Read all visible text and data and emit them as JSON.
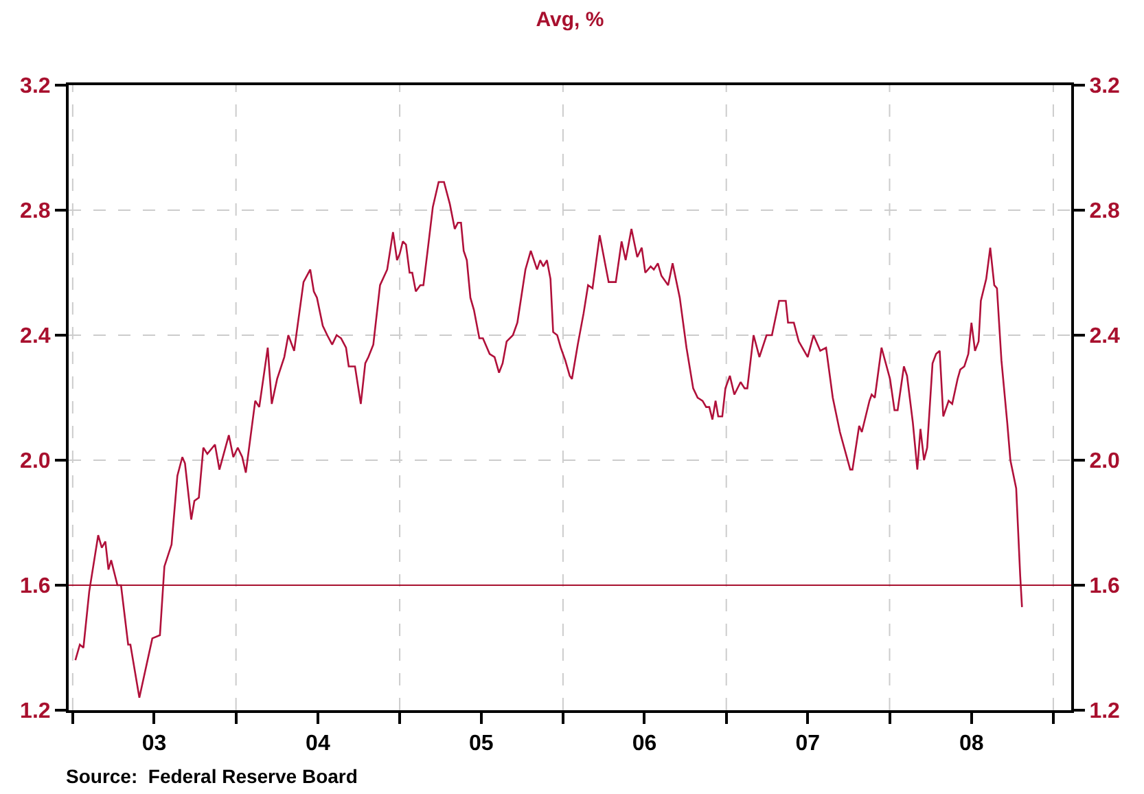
{
  "chart_data": {
    "type": "line",
    "title": "Avg, %",
    "x": [
      "2003-01-07",
      "2003-01-17",
      "2003-01-25",
      "2003-02-07",
      "2003-02-27",
      "2003-03-07",
      "2003-03-15",
      "2003-03-22",
      "2003-03-28",
      "2003-04-11",
      "2003-04-19",
      "2003-05-05",
      "2003-05-10",
      "2003-05-30",
      "2003-06-28",
      "2003-07-15",
      "2003-07-25",
      "2003-08-10",
      "2003-08-23",
      "2003-09-03",
      "2003-09-09",
      "2003-09-23",
      "2003-09-30",
      "2003-10-10",
      "2003-10-20",
      "2003-10-29",
      "2003-11-15",
      "2003-11-25",
      "2003-12-16",
      "2003-12-26",
      "2004-01-05",
      "2004-01-15",
      "2004-01-23",
      "2004-02-13",
      "2004-02-22",
      "2004-03-12",
      "2004-03-21",
      "2004-04-02",
      "2004-04-18",
      "2004-04-27",
      "2004-05-10",
      "2004-05-31",
      "2004-06-15",
      "2004-06-23",
      "2004-06-30",
      "2004-07-13",
      "2004-07-23",
      "2004-08-03",
      "2004-08-13",
      "2004-08-23",
      "2004-09-03",
      "2004-09-09",
      "2004-09-23",
      "2004-10-06",
      "2004-10-16",
      "2004-10-23",
      "2004-11-03",
      "2004-11-18",
      "2004-12-04",
      "2004-12-17",
      "2004-12-26",
      "2005-01-01",
      "2005-01-08",
      "2005-01-15",
      "2005-01-23",
      "2005-01-29",
      "2005-02-06",
      "2005-02-16",
      "2005-02-23",
      "2005-03-06",
      "2005-03-16",
      "2005-03-29",
      "2005-04-10",
      "2005-04-23",
      "2005-05-04",
      "2005-05-11",
      "2005-05-18",
      "2005-05-24",
      "2005-05-31",
      "2005-06-08",
      "2005-06-16",
      "2005-06-28",
      "2005-07-06",
      "2005-07-21",
      "2005-08-01",
      "2005-08-11",
      "2005-08-19",
      "2005-08-28",
      "2005-09-11",
      "2005-09-21",
      "2005-10-09",
      "2005-10-21",
      "2005-11-04",
      "2005-11-11",
      "2005-11-18",
      "2005-11-26",
      "2005-12-04",
      "2005-12-10",
      "2005-12-19",
      "2005-12-27",
      "2006-01-06",
      "2006-01-16",
      "2006-01-21",
      "2006-02-03",
      "2006-02-16",
      "2006-02-26",
      "2006-03-08",
      "2006-03-24",
      "2006-04-13",
      "2006-04-29",
      "2006-05-12",
      "2006-05-21",
      "2006-06-03",
      "2006-06-16",
      "2006-06-26",
      "2006-07-04",
      "2006-07-16",
      "2006-07-23",
      "2006-08-01",
      "2006-08-09",
      "2006-08-24",
      "2006-09-03",
      "2006-09-19",
      "2006-10-04",
      "2006-10-19",
      "2006-10-29",
      "2006-11-09",
      "2006-11-17",
      "2006-11-24",
      "2006-12-01",
      "2006-12-08",
      "2006-12-14",
      "2006-12-23",
      "2006-12-30",
      "2007-01-09",
      "2007-01-19",
      "2007-02-02",
      "2007-02-11",
      "2007-02-17",
      "2007-03-03",
      "2007-03-16",
      "2007-04-01",
      "2007-04-13",
      "2007-04-29",
      "2007-05-07",
      "2007-05-14",
      "2007-05-19",
      "2007-06-01",
      "2007-06-12",
      "2007-07-02",
      "2007-07-15",
      "2007-07-30",
      "2007-08-12",
      "2007-08-27",
      "2007-09-12",
      "2007-10-05",
      "2007-10-10",
      "2007-10-25",
      "2007-10-31",
      "2007-11-17",
      "2007-11-22",
      "2007-11-29",
      "2007-12-14",
      "2008-01-02",
      "2008-01-12",
      "2008-01-19",
      "2008-02-02",
      "2008-02-09",
      "2008-02-22",
      "2008-03-03",
      "2008-03-10",
      "2008-03-18",
      "2008-03-25",
      "2008-04-06",
      "2008-04-14",
      "2008-04-22",
      "2008-04-30",
      "2008-05-12",
      "2008-05-20",
      "2008-06-01",
      "2008-06-07",
      "2008-06-16",
      "2008-06-25",
      "2008-07-02",
      "2008-07-10",
      "2008-07-18",
      "2008-07-23",
      "2008-08-04",
      "2008-08-13",
      "2008-08-22",
      "2008-08-28",
      "2008-09-07",
      "2008-09-20",
      "2008-09-27",
      "2008-10-10",
      "2008-10-19",
      "2008-10-23"
    ],
    "series": [
      {
        "color": "#b0103a",
        "values": [
          1.36,
          1.41,
          1.4,
          1.58,
          1.76,
          1.72,
          1.74,
          1.65,
          1.68,
          1.6,
          1.6,
          1.41,
          1.41,
          1.24,
          1.43,
          1.44,
          1.66,
          1.73,
          1.95,
          2.01,
          1.99,
          1.81,
          1.87,
          1.88,
          2.04,
          2.02,
          2.05,
          1.97,
          2.08,
          2.01,
          2.04,
          2.01,
          1.96,
          2.19,
          2.17,
          2.36,
          2.18,
          2.26,
          2.33,
          2.4,
          2.35,
          2.57,
          2.61,
          2.54,
          2.52,
          2.43,
          2.4,
          2.37,
          2.4,
          2.39,
          2.36,
          2.3,
          2.3,
          2.18,
          2.31,
          2.33,
          2.37,
          2.56,
          2.61,
          2.73,
          2.64,
          2.66,
          2.7,
          2.69,
          2.6,
          2.6,
          2.54,
          2.56,
          2.56,
          2.69,
          2.81,
          2.89,
          2.89,
          2.82,
          2.74,
          2.76,
          2.76,
          2.67,
          2.64,
          2.52,
          2.48,
          2.39,
          2.39,
          2.34,
          2.33,
          2.28,
          2.31,
          2.38,
          2.4,
          2.44,
          2.61,
          2.67,
          2.61,
          2.64,
          2.62,
          2.64,
          2.58,
          2.41,
          2.4,
          2.36,
          2.32,
          2.27,
          2.26,
          2.37,
          2.47,
          2.56,
          2.55,
          2.72,
          2.57,
          2.57,
          2.7,
          2.64,
          2.74,
          2.65,
          2.68,
          2.6,
          2.62,
          2.61,
          2.63,
          2.59,
          2.56,
          2.63,
          2.52,
          2.36,
          2.23,
          2.2,
          2.19,
          2.17,
          2.17,
          2.13,
          2.19,
          2.14,
          2.14,
          2.23,
          2.27,
          2.21,
          2.25,
          2.23,
          2.23,
          2.4,
          2.33,
          2.4,
          2.4,
          2.51,
          2.51,
          2.51,
          2.44,
          2.44,
          2.38,
          2.33,
          2.4,
          2.35,
          2.36,
          2.2,
          2.09,
          1.97,
          1.97,
          2.11,
          2.09,
          2.19,
          2.21,
          2.2,
          2.36,
          2.26,
          2.16,
          2.16,
          2.3,
          2.27,
          2.12,
          1.97,
          2.1,
          2.0,
          2.04,
          2.31,
          2.34,
          2.35,
          2.14,
          2.19,
          2.18,
          2.26,
          2.29,
          2.3,
          2.34,
          2.44,
          2.35,
          2.38,
          2.51,
          2.58,
          2.68,
          2.56,
          2.55,
          2.32,
          2.12,
          2.0,
          1.91,
          1.63,
          1.53
        ]
      }
    ],
    "xlim": [
      "2002-12-23",
      "2009-02-10"
    ],
    "xticks": [
      {
        "value": "2003-01-01",
        "label": null
      },
      {
        "value": "2003-07-02",
        "label": "03"
      },
      {
        "value": "2004-01-01",
        "label": null
      },
      {
        "value": "2004-07-02",
        "label": "04"
      },
      {
        "value": "2005-01-01",
        "label": null
      },
      {
        "value": "2005-07-02",
        "label": "05"
      },
      {
        "value": "2006-01-01",
        "label": null
      },
      {
        "value": "2006-07-02",
        "label": "06"
      },
      {
        "value": "2007-01-01",
        "label": null
      },
      {
        "value": "2007-07-02",
        "label": "07"
      },
      {
        "value": "2008-01-01",
        "label": null
      },
      {
        "value": "2008-07-02",
        "label": "08"
      },
      {
        "value": "2009-01-01",
        "label": null
      }
    ],
    "ylim": [
      1.2,
      3.2
    ],
    "yticks": [
      1.2,
      1.6,
      {
        "value": 2,
        "label": "2.0"
      },
      2.4,
      2.8,
      3.2
    ],
    "y2lim": [
      1.2,
      3.2
    ],
    "y2ticks": [
      1.2,
      1.6,
      {
        "value": 2,
        "label": "2.0"
      },
      2.4,
      2.8,
      3.2
    ],
    "ref_lines": [
      {
        "axis": "y",
        "value": 1.6,
        "color": "#a8102e",
        "line_style": "solid"
      }
    ],
    "grid": true,
    "line_style": "solid",
    "marker": "none",
    "annotations": [
      "Source:  Federal Reserve Board"
    ]
  }
}
